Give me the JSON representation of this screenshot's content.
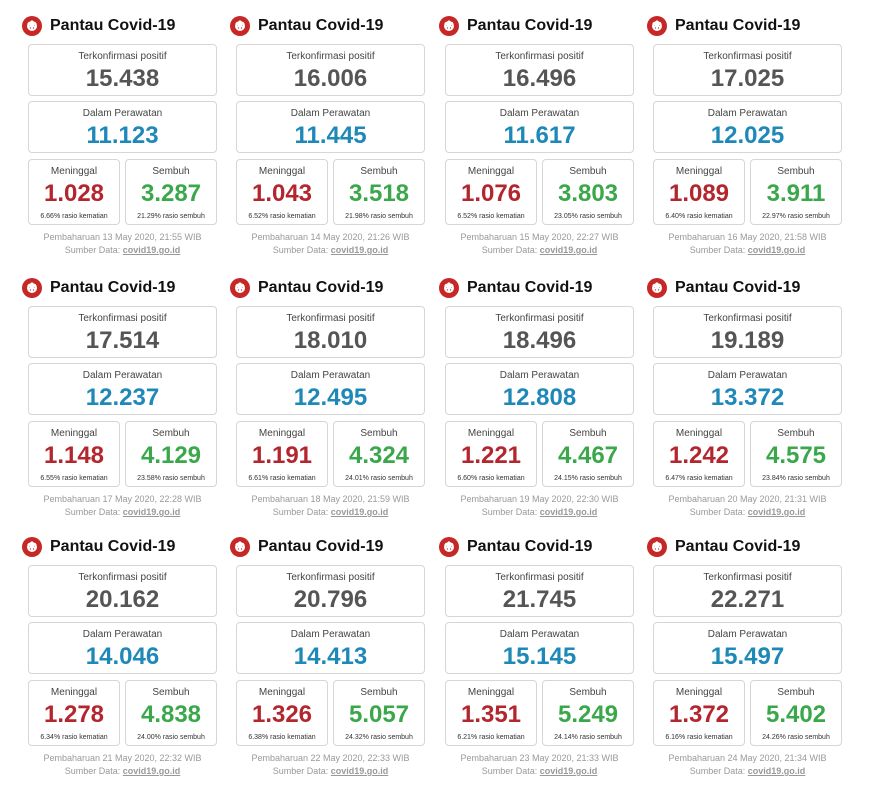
{
  "brand": {
    "title": "Pantau Covid-19",
    "icon": "virus-icon"
  },
  "labels": {
    "confirmed": "Terkonfirmasi positif",
    "treated": "Dalam Perawatan",
    "died": "Meninggal",
    "recovered": "Sembuh",
    "source_prefix": "Sumber Data:",
    "source_link": "covid19.go.id"
  },
  "colors": {
    "confirmed": "#555555",
    "treated": "#1e88b8",
    "died": "#b3262e",
    "recovered": "#3aa84a",
    "brand_icon": "#c62828"
  },
  "panels": [
    {
      "confirmed": "15.438",
      "treated": "11.123",
      "died": "1.028",
      "death_ratio": "6.66% rasio kematian",
      "recovered": "3.287",
      "recovery_ratio": "21.29% rasio sembuh",
      "updated": "Pembaharuan 13 May 2020, 21:55 WIB"
    },
    {
      "confirmed": "16.006",
      "treated": "11.445",
      "died": "1.043",
      "death_ratio": "6.52% rasio kematian",
      "recovered": "3.518",
      "recovery_ratio": "21.98% rasio sembuh",
      "updated": "Pembaharuan 14 May 2020, 21:26 WIB"
    },
    {
      "confirmed": "16.496",
      "treated": "11.617",
      "died": "1.076",
      "death_ratio": "6.52% rasio kematian",
      "recovered": "3.803",
      "recovery_ratio": "23.05% rasio sembuh",
      "updated": "Pembaharuan 15 May 2020, 22:27 WIB"
    },
    {
      "confirmed": "17.025",
      "treated": "12.025",
      "died": "1.089",
      "death_ratio": "6.40% rasio kematian",
      "recovered": "3.911",
      "recovery_ratio": "22.97% rasio sembuh",
      "updated": "Pembaharuan 16 May 2020, 21:58 WIB"
    },
    {
      "confirmed": "17.514",
      "treated": "12.237",
      "died": "1.148",
      "death_ratio": "6.55% rasio kematian",
      "recovered": "4.129",
      "recovery_ratio": "23.58% rasio sembuh",
      "updated": "Pembaharuan 17 May 2020, 22:28 WIB"
    },
    {
      "confirmed": "18.010",
      "treated": "12.495",
      "died": "1.191",
      "death_ratio": "6.61% rasio kematian",
      "recovered": "4.324",
      "recovery_ratio": "24.01% rasio sembuh",
      "updated": "Pembaharuan 18 May 2020, 21:59 WIB"
    },
    {
      "confirmed": "18.496",
      "treated": "12.808",
      "died": "1.221",
      "death_ratio": "6.60% rasio kematian",
      "recovered": "4.467",
      "recovery_ratio": "24.15% rasio sembuh",
      "updated": "Pembaharuan 19 May 2020, 22:30 WIB"
    },
    {
      "confirmed": "19.189",
      "treated": "13.372",
      "died": "1.242",
      "death_ratio": "6.47% rasio kematian",
      "recovered": "4.575",
      "recovery_ratio": "23.84% rasio sembuh",
      "updated": "Pembaharuan 20 May 2020, 21:31 WIB"
    },
    {
      "confirmed": "20.162",
      "treated": "14.046",
      "died": "1.278",
      "death_ratio": "6.34% rasio kematian",
      "recovered": "4.838",
      "recovery_ratio": "24.00% rasio sembuh",
      "updated": "Pembaharuan 21 May 2020, 22:32 WIB"
    },
    {
      "confirmed": "20.796",
      "treated": "14.413",
      "died": "1.326",
      "death_ratio": "6.38% rasio kematian",
      "recovered": "5.057",
      "recovery_ratio": "24.32% rasio sembuh",
      "updated": "Pembaharuan 22 May 2020, 22:33 WIB"
    },
    {
      "confirmed": "21.745",
      "treated": "15.145",
      "died": "1.351",
      "death_ratio": "6.21% rasio kematian",
      "recovered": "5.249",
      "recovery_ratio": "24.14% rasio sembuh",
      "updated": "Pembaharuan 23 May 2020, 21:33 WIB"
    },
    {
      "confirmed": "22.271",
      "treated": "15.497",
      "died": "1.372",
      "death_ratio": "6.16% rasio kematian",
      "recovered": "5.402",
      "recovery_ratio": "24.26% rasio sembuh",
      "updated": "Pembaharuan 24 May 2020, 21:34 WIB"
    }
  ]
}
